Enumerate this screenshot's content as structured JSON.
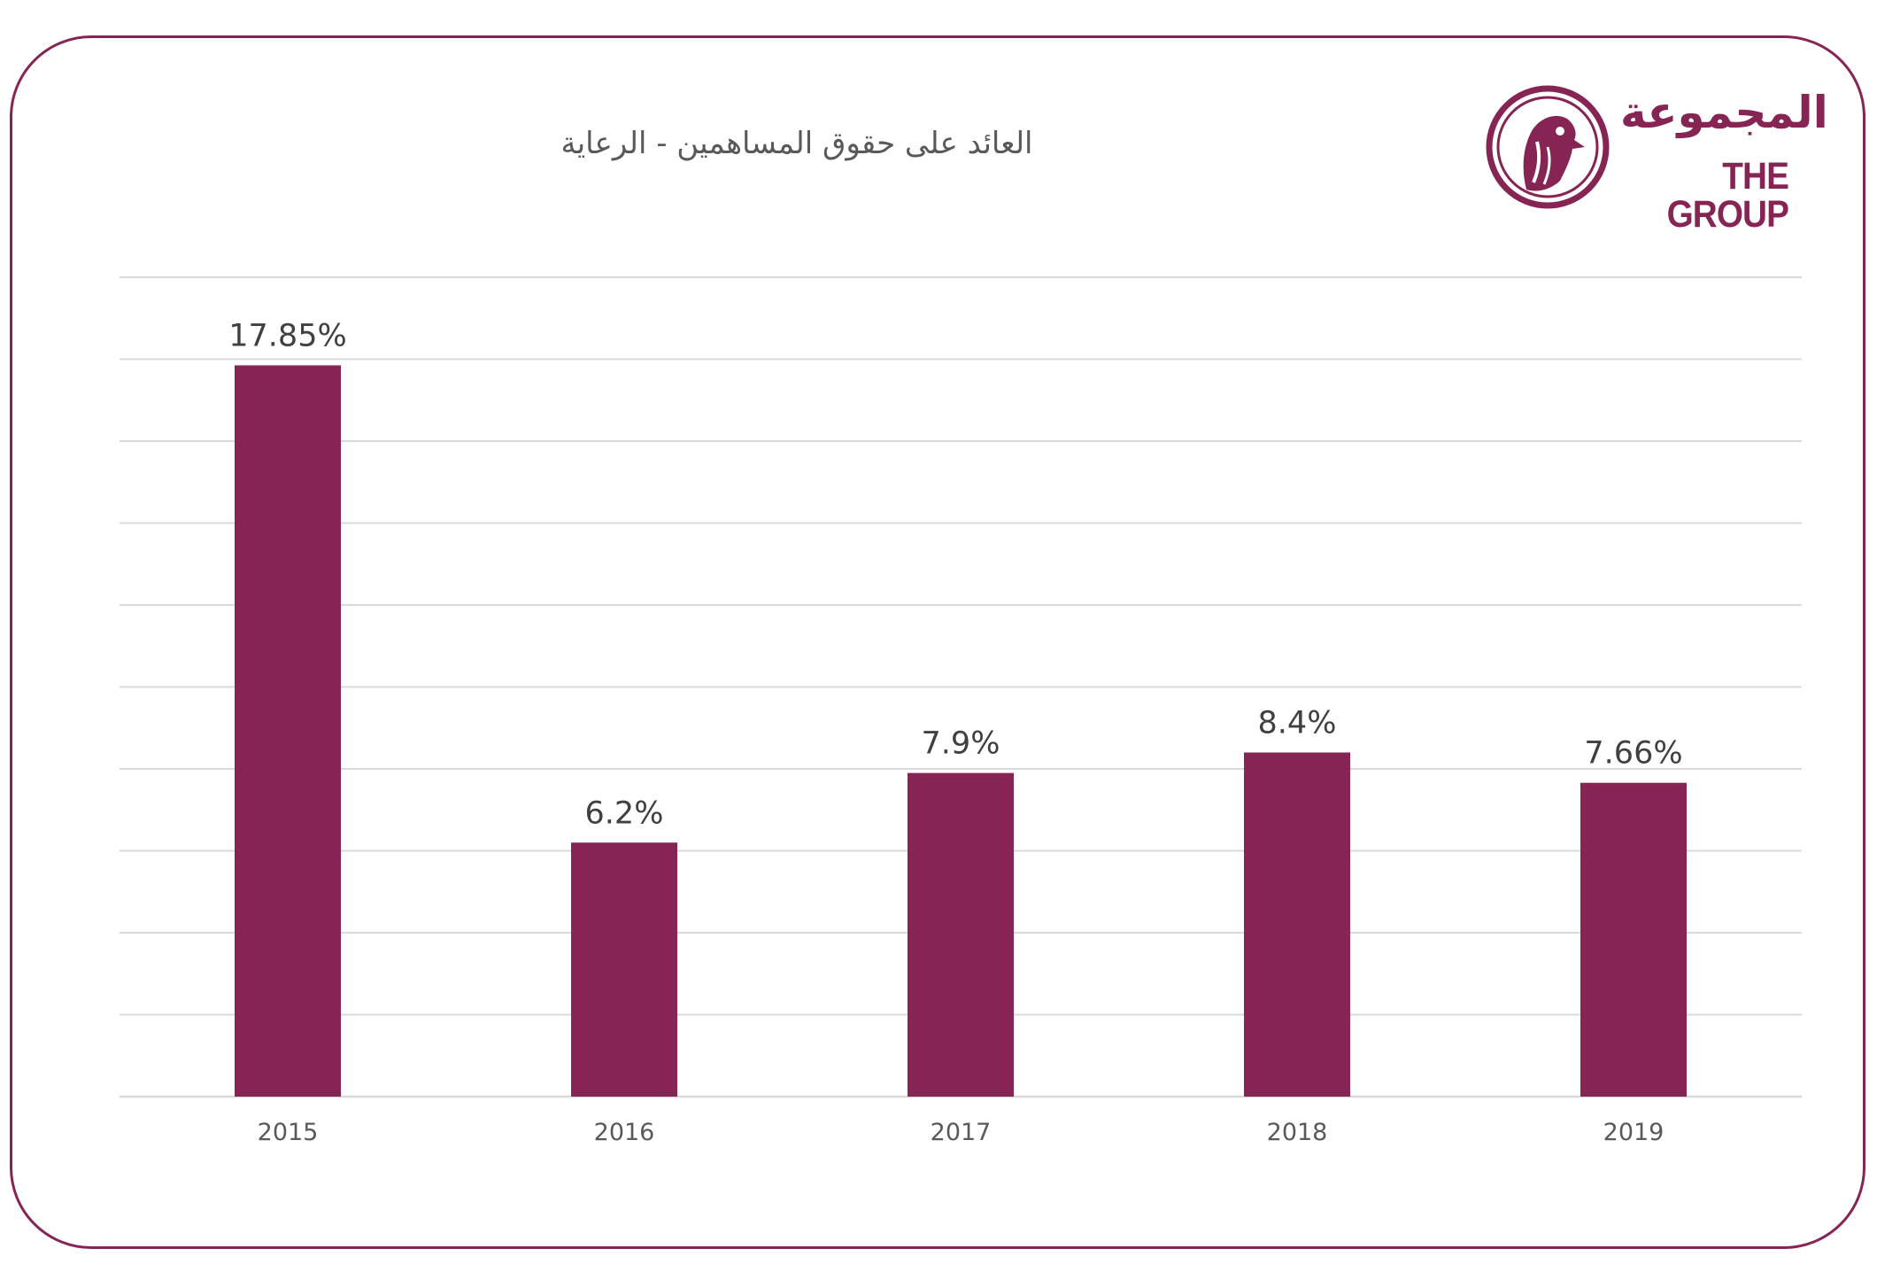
{
  "logo": {
    "arabic": "المجموعة",
    "english": "THE GROUP"
  },
  "colors": {
    "brand": "#862453",
    "grid": "#d9d9d9",
    "text": "#404040"
  },
  "chart_data": {
    "type": "bar",
    "title": "العائد على حقوق المساهمين - الرعاية",
    "categories": [
      "2015",
      "2016",
      "2017",
      "2018",
      "2019"
    ],
    "values": [
      17.85,
      6.2,
      7.9,
      8.4,
      7.66
    ],
    "data_labels": [
      "17.85%",
      "6.2%",
      "7.9%",
      "8.4%",
      "7.66%"
    ],
    "ylim": [
      0,
      20
    ],
    "grid": true,
    "legend": "none"
  }
}
